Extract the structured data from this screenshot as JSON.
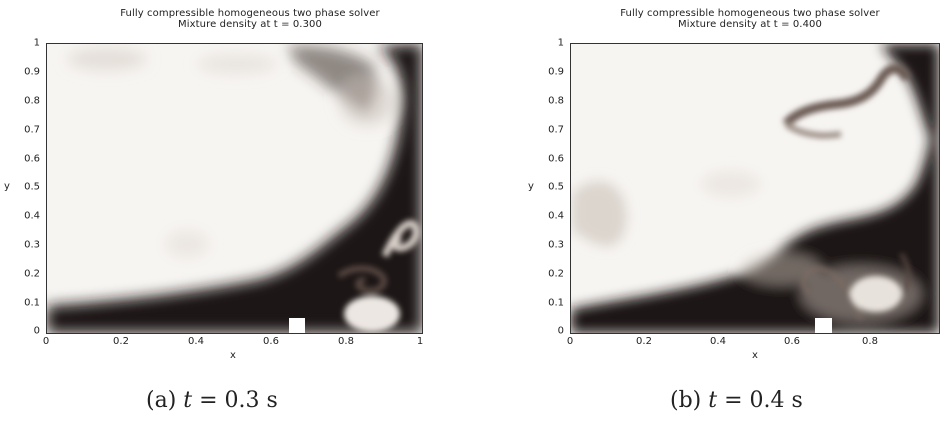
{
  "figures": [
    {
      "title_line1": "Fully compressible homogeneous two phase solver",
      "title_line2": "Mixture density at t = 0.300",
      "yticks": [
        "1",
        "0.9",
        "0.8",
        "0.7",
        "0.6",
        "0.5",
        "0.4",
        "0.3",
        "0.2",
        "0.1",
        "0"
      ],
      "xticks": [
        "0",
        "0.2",
        "0.4",
        "0.6",
        "0.8",
        "1"
      ],
      "ylabel": "y",
      "xlabel": "x",
      "caption_prefix": "(a)",
      "caption_var": "t",
      "caption_rest": " = 0.3 s"
    },
    {
      "title_line1": "Fully compressible homogeneous two phase solver",
      "title_line2": "Mixture density at t = 0.400",
      "yticks": [
        "1",
        "0.9",
        "0.8",
        "0.7",
        "0.6",
        "0.5",
        "0.4",
        "0.3",
        "0.2",
        "0.1",
        "0"
      ],
      "xticks": [
        "0",
        "0.2",
        "0.4",
        "0.6",
        "0.8"
      ],
      "ylabel": "y",
      "xlabel": "x",
      "caption_prefix": "(b)",
      "caption_var": "t",
      "caption_rest": " = 0.4 s"
    }
  ],
  "colors": {
    "dense_fluid": "#1c1412",
    "light_fluid": "#f7f5f2"
  }
}
